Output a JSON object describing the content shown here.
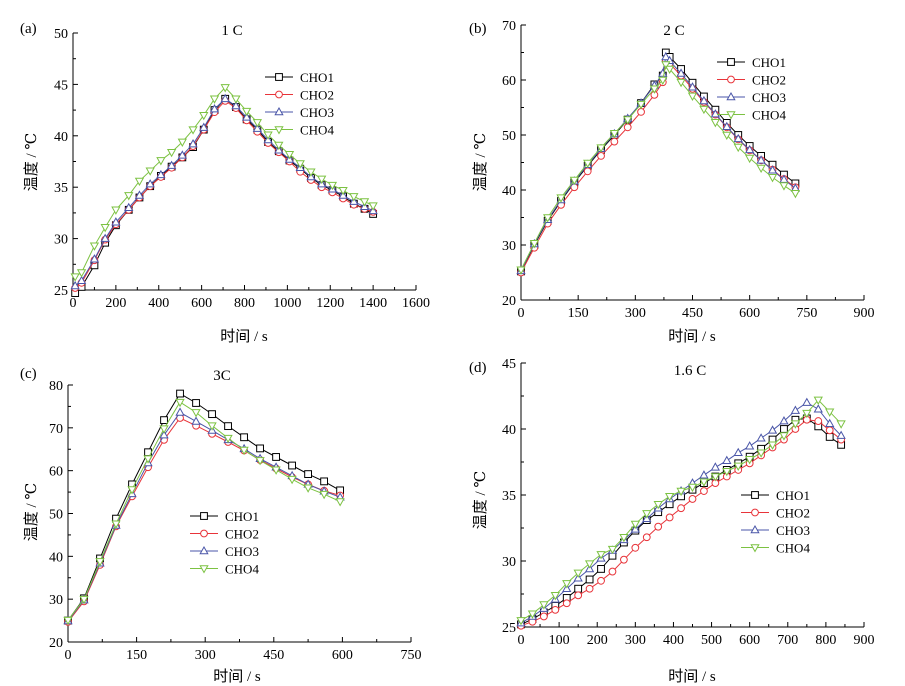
{
  "figure": {
    "background": "#ffffff",
    "colors": {
      "CHO1": "#000000",
      "CHO2": "#e8343a",
      "CHO3": "#4a56a8",
      "CHO4": "#7cc242"
    }
  },
  "chart_data": [
    {
      "id": "a",
      "type": "line",
      "panel_label": "(a)",
      "title": "1 C",
      "xlabel": "时间 / s",
      "ylabel": "温度 / ℃",
      "xlim": [
        0,
        1600
      ],
      "ylim": [
        25,
        50
      ],
      "xticks": [
        0,
        200,
        400,
        600,
        800,
        1000,
        1200,
        1400,
        1600
      ],
      "yticks": [
        25,
        30,
        35,
        40,
        45,
        50
      ],
      "grid": false,
      "legend": "top-right",
      "series": [
        {
          "name": "CHO1",
          "marker": "square",
          "x": [
            10,
            40,
            100,
            150,
            200,
            260,
            310,
            360,
            410,
            460,
            510,
            560,
            610,
            660,
            710,
            760,
            810,
            860,
            910,
            960,
            1010,
            1060,
            1110,
            1160,
            1210,
            1260,
            1310,
            1360,
            1400
          ],
          "y": [
            24.7,
            25.3,
            27.4,
            29.6,
            31.3,
            32.8,
            34.0,
            35.1,
            36.1,
            37.0,
            37.9,
            38.9,
            40.6,
            42.5,
            43.6,
            42.8,
            41.6,
            40.6,
            39.4,
            38.5,
            37.6,
            36.8,
            35.9,
            35.2,
            34.7,
            34.1,
            33.4,
            32.9,
            32.4
          ]
        },
        {
          "name": "CHO2",
          "marker": "circle",
          "x": [
            10,
            40,
            100,
            150,
            200,
            260,
            310,
            360,
            410,
            460,
            510,
            560,
            610,
            660,
            710,
            760,
            810,
            860,
            910,
            960,
            1010,
            1060,
            1110,
            1160,
            1210,
            1260,
            1310,
            1360,
            1400
          ],
          "y": [
            25.2,
            25.7,
            27.9,
            29.9,
            31.4,
            32.8,
            34.0,
            35.1,
            36.0,
            36.9,
            37.9,
            39.0,
            40.6,
            42.3,
            43.4,
            42.7,
            41.5,
            40.4,
            39.3,
            38.4,
            37.5,
            36.5,
            35.7,
            35.0,
            34.5,
            33.9,
            33.3,
            32.9,
            32.6
          ]
        },
        {
          "name": "CHO3",
          "marker": "triangle-up",
          "x": [
            10,
            40,
            100,
            150,
            200,
            260,
            310,
            360,
            410,
            460,
            510,
            560,
            610,
            660,
            710,
            760,
            810,
            860,
            910,
            960,
            1010,
            1060,
            1110,
            1160,
            1210,
            1260,
            1310,
            1360,
            1400
          ],
          "y": [
            25.4,
            25.9,
            28.0,
            30.0,
            31.6,
            33.0,
            34.2,
            35.3,
            36.2,
            37.1,
            38.1,
            39.2,
            40.8,
            42.6,
            43.6,
            42.9,
            41.8,
            40.7,
            39.6,
            38.6,
            37.7,
            36.9,
            36.0,
            35.3,
            34.8,
            34.2,
            33.6,
            33.1,
            32.7
          ]
        },
        {
          "name": "CHO4",
          "marker": "triangle-down",
          "x": [
            10,
            40,
            100,
            150,
            200,
            260,
            310,
            360,
            410,
            460,
            510,
            560,
            610,
            660,
            710,
            760,
            810,
            860,
            910,
            960,
            1010,
            1060,
            1110,
            1160,
            1210,
            1260,
            1310,
            1360,
            1400
          ],
          "y": [
            26.3,
            26.7,
            29.3,
            31.1,
            32.8,
            34.2,
            35.6,
            36.6,
            37.6,
            38.4,
            39.4,
            40.6,
            42.0,
            43.6,
            44.7,
            43.6,
            42.4,
            41.3,
            40.1,
            39.1,
            38.2,
            37.3,
            36.5,
            35.8,
            35.2,
            34.7,
            34.1,
            33.6,
            33.2
          ]
        }
      ]
    },
    {
      "id": "b",
      "type": "line",
      "panel_label": "(b)",
      "title": "2 C",
      "xlabel": "时间 / s",
      "ylabel": "温度 / ℃",
      "xlim": [
        0,
        900
      ],
      "ylim": [
        20,
        70
      ],
      "xticks": [
        0,
        150,
        300,
        450,
        600,
        750,
        900
      ],
      "yticks": [
        20,
        30,
        40,
        50,
        60,
        70
      ],
      "grid": false,
      "legend": "top-right",
      "series": [
        {
          "name": "CHO1",
          "marker": "square",
          "x": [
            0,
            35,
            70,
            105,
            140,
            175,
            210,
            245,
            280,
            315,
            350,
            372,
            380,
            390,
            420,
            450,
            480,
            510,
            540,
            570,
            600,
            630,
            660,
            690,
            720
          ],
          "y": [
            25.2,
            30.0,
            34.4,
            38.0,
            41.4,
            44.4,
            47.3,
            50.0,
            52.8,
            55.8,
            59.2,
            60.8,
            65.0,
            64.2,
            62.0,
            59.5,
            57.0,
            54.6,
            52.2,
            50.0,
            48.0,
            46.2,
            44.6,
            42.8,
            41.2
          ]
        },
        {
          "name": "CHO2",
          "marker": "circle",
          "x": [
            0,
            35,
            70,
            105,
            140,
            175,
            210,
            245,
            280,
            315,
            350,
            372,
            380,
            390,
            420,
            450,
            480,
            510,
            540,
            570,
            600,
            630,
            660,
            690,
            720
          ],
          "y": [
            25.0,
            29.5,
            33.9,
            37.3,
            40.5,
            43.4,
            46.2,
            48.8,
            51.4,
            54.2,
            57.3,
            59.6,
            63.5,
            63.0,
            60.8,
            58.4,
            56.0,
            53.7,
            51.4,
            49.2,
            47.2,
            45.4,
            43.7,
            42.0,
            40.5
          ]
        },
        {
          "name": "CHO3",
          "marker": "triangle-up",
          "x": [
            0,
            35,
            70,
            105,
            140,
            175,
            210,
            245,
            280,
            315,
            350,
            372,
            380,
            390,
            420,
            450,
            480,
            510,
            540,
            570,
            600,
            630,
            660,
            690,
            720
          ],
          "y": [
            25.3,
            30.2,
            34.6,
            38.2,
            41.6,
            44.6,
            47.5,
            50.2,
            53.0,
            55.8,
            59.0,
            61.2,
            64.2,
            63.5,
            61.2,
            58.7,
            56.2,
            53.8,
            51.5,
            49.3,
            47.3,
            45.4,
            43.6,
            41.9,
            40.3
          ]
        },
        {
          "name": "CHO4",
          "marker": "triangle-down",
          "x": [
            0,
            35,
            70,
            105,
            140,
            175,
            210,
            245,
            280,
            315,
            350,
            372,
            380,
            390,
            420,
            450,
            480,
            510,
            540,
            570,
            600,
            630,
            660,
            690,
            720
          ],
          "y": [
            25.5,
            30.3,
            35.0,
            38.6,
            41.8,
            44.9,
            47.7,
            50.3,
            52.8,
            55.6,
            58.4,
            60.0,
            62.8,
            62.0,
            59.6,
            57.1,
            54.7,
            52.3,
            50.0,
            47.8,
            45.8,
            44.0,
            42.3,
            40.8,
            39.4
          ]
        }
      ]
    },
    {
      "id": "c",
      "type": "line",
      "panel_label": "(c)",
      "title": "3C",
      "xlabel": "时间 / s",
      "ylabel": "温度 / ℃",
      "xlim": [
        0,
        750
      ],
      "ylim": [
        20,
        80
      ],
      "xticks": [
        0,
        150,
        300,
        450,
        600,
        750
      ],
      "yticks": [
        20,
        30,
        40,
        50,
        60,
        70,
        80
      ],
      "grid": false,
      "legend": "center-right",
      "series": [
        {
          "name": "CHO1",
          "marker": "square",
          "x": [
            0,
            35,
            70,
            105,
            140,
            175,
            210,
            245,
            280,
            315,
            350,
            385,
            420,
            455,
            490,
            525,
            560,
            595
          ],
          "y": [
            25.0,
            30.2,
            39.5,
            48.8,
            56.8,
            64.3,
            71.8,
            78.0,
            75.8,
            73.2,
            70.4,
            67.8,
            65.2,
            63.2,
            61.2,
            59.2,
            57.5,
            55.4
          ]
        },
        {
          "name": "CHO2",
          "marker": "circle",
          "x": [
            0,
            35,
            70,
            105,
            140,
            175,
            210,
            245,
            280,
            315,
            350,
            385,
            420,
            455,
            490,
            525,
            560,
            595
          ],
          "y": [
            24.7,
            29.5,
            38.0,
            47.0,
            54.0,
            60.8,
            67.2,
            72.3,
            70.5,
            68.6,
            66.7,
            64.7,
            62.5,
            60.5,
            58.5,
            56.8,
            55.3,
            54.2
          ]
        },
        {
          "name": "CHO3",
          "marker": "triangle-up",
          "x": [
            0,
            35,
            70,
            105,
            140,
            175,
            210,
            245,
            280,
            315,
            350,
            385,
            420,
            455,
            490,
            525,
            560,
            595
          ],
          "y": [
            24.9,
            29.8,
            38.4,
            47.2,
            54.6,
            61.8,
            68.3,
            73.6,
            71.5,
            69.4,
            67.2,
            65.1,
            62.8,
            60.8,
            58.8,
            56.8,
            55.2,
            53.8
          ]
        },
        {
          "name": "CHO4",
          "marker": "triangle-down",
          "x": [
            0,
            35,
            70,
            105,
            140,
            175,
            210,
            245,
            280,
            315,
            350,
            385,
            420,
            455,
            490,
            525,
            560,
            595
          ],
          "y": [
            25.1,
            30.0,
            38.8,
            47.6,
            55.6,
            62.8,
            69.8,
            76.0,
            73.6,
            70.5,
            67.6,
            64.8,
            62.4,
            60.2,
            58.0,
            56.0,
            54.5,
            52.8
          ]
        }
      ]
    },
    {
      "id": "d",
      "type": "line",
      "panel_label": "(d)",
      "title": "1.6 C",
      "xlabel": "时间 / s",
      "ylabel": "温度 / ℃",
      "xlim": [
        0,
        900
      ],
      "ylim": [
        25,
        45
      ],
      "xticks": [
        0,
        100,
        200,
        300,
        400,
        500,
        600,
        700,
        800,
        900
      ],
      "yticks": [
        25,
        30,
        35,
        40,
        45
      ],
      "grid": false,
      "legend": "center-right",
      "series": [
        {
          "name": "CHO1",
          "marker": "square",
          "x": [
            0,
            30,
            60,
            90,
            120,
            150,
            180,
            210,
            240,
            270,
            300,
            330,
            360,
            390,
            420,
            450,
            480,
            510,
            540,
            570,
            600,
            630,
            660,
            690,
            720,
            750,
            780,
            810,
            840
          ],
          "y": [
            25.2,
            25.6,
            26.1,
            26.6,
            27.2,
            27.9,
            28.6,
            29.4,
            30.4,
            31.4,
            32.3,
            33.1,
            33.7,
            34.3,
            34.9,
            35.4,
            35.9,
            36.4,
            36.9,
            37.4,
            37.9,
            38.5,
            39.2,
            40.0,
            40.7,
            40.8,
            40.2,
            39.4,
            38.8
          ]
        },
        {
          "name": "CHO2",
          "marker": "circle",
          "x": [
            0,
            30,
            60,
            90,
            120,
            150,
            180,
            210,
            240,
            270,
            300,
            330,
            360,
            390,
            420,
            450,
            480,
            510,
            540,
            570,
            600,
            630,
            660,
            690,
            720,
            750,
            780,
            810,
            840
          ],
          "y": [
            25.1,
            25.4,
            25.8,
            26.3,
            26.8,
            27.4,
            27.9,
            28.5,
            29.2,
            30.1,
            31.0,
            31.8,
            32.6,
            33.3,
            34.0,
            34.7,
            35.3,
            35.9,
            36.4,
            36.9,
            37.4,
            38.0,
            38.6,
            39.2,
            40.0,
            40.7,
            40.6,
            39.9,
            39.2
          ]
        },
        {
          "name": "CHO3",
          "marker": "triangle-up",
          "x": [
            0,
            30,
            60,
            90,
            120,
            150,
            180,
            210,
            240,
            270,
            300,
            330,
            360,
            390,
            420,
            450,
            480,
            510,
            540,
            570,
            600,
            630,
            660,
            690,
            720,
            750,
            780,
            810,
            840
          ],
          "y": [
            25.3,
            25.8,
            26.4,
            27.1,
            27.9,
            28.7,
            29.4,
            30.2,
            30.8,
            31.6,
            32.4,
            33.2,
            34.0,
            34.7,
            35.3,
            35.9,
            36.5,
            37.1,
            37.6,
            38.2,
            38.7,
            39.3,
            39.9,
            40.6,
            41.4,
            42.0,
            41.5,
            40.4,
            39.5
          ]
        },
        {
          "name": "CHO4",
          "marker": "triangle-down",
          "x": [
            0,
            30,
            60,
            90,
            120,
            150,
            180,
            210,
            240,
            270,
            300,
            330,
            360,
            390,
            420,
            450,
            480,
            510,
            540,
            570,
            600,
            630,
            660,
            690,
            720,
            750,
            780,
            810,
            840
          ],
          "y": [
            25.5,
            26.0,
            26.7,
            27.4,
            28.3,
            29.1,
            29.8,
            30.5,
            30.9,
            31.8,
            32.8,
            33.6,
            34.3,
            34.9,
            35.3,
            35.6,
            36.0,
            36.4,
            36.8,
            37.2,
            37.7,
            38.2,
            38.8,
            39.5,
            40.4,
            41.2,
            42.2,
            41.3,
            40.4
          ]
        }
      ]
    }
  ]
}
